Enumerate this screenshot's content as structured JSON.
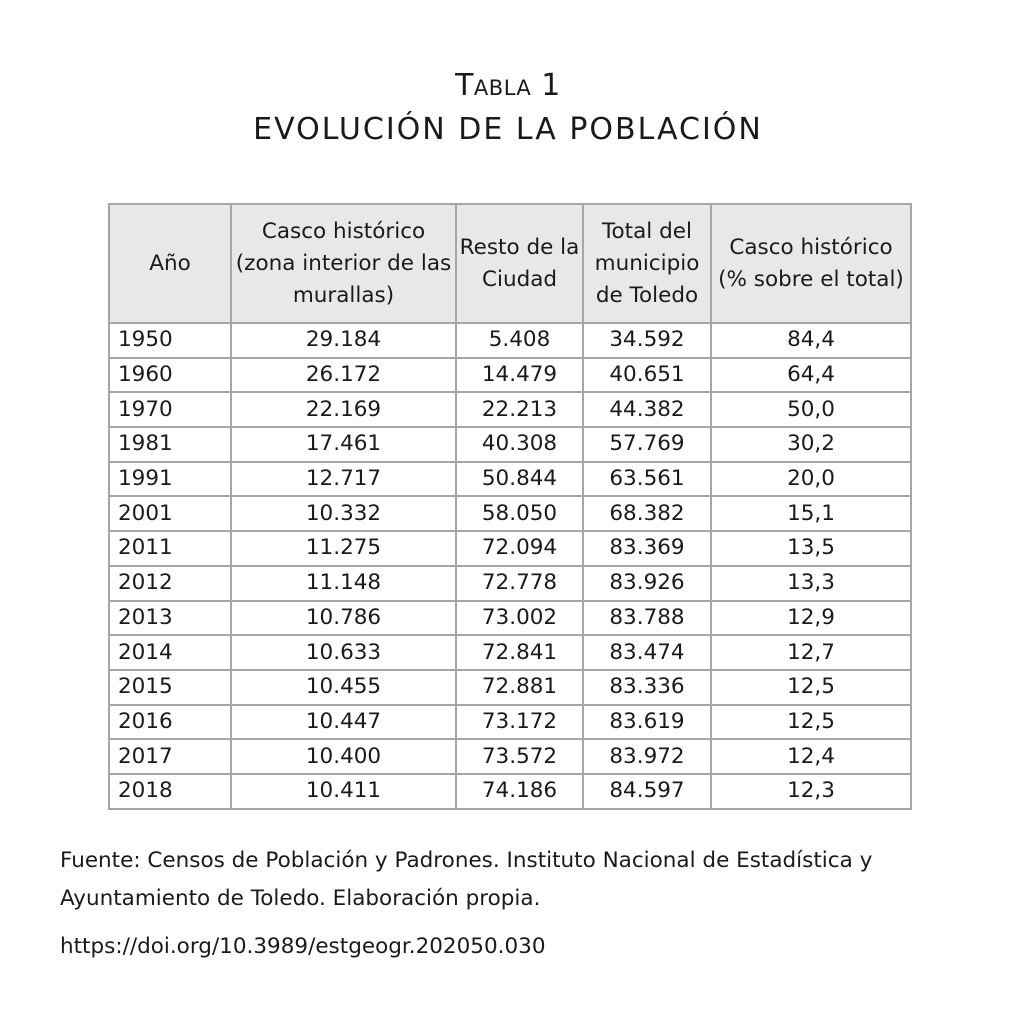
{
  "caption": {
    "number": "Tabla 1",
    "title": "EVOLUCIÓN DE LA POBLACIÓN"
  },
  "table": {
    "headers": [
      "Año",
      "Casco histórico (zona interior de las murallas)",
      "Resto de la Ciudad",
      "Total del municipio de Toledo",
      "Casco histórico (% sobre el total)"
    ],
    "rows": [
      [
        "1950",
        "29.184",
        "5.408",
        "34.592",
        "84,4"
      ],
      [
        "1960",
        "26.172",
        "14.479",
        "40.651",
        "64,4"
      ],
      [
        "1970",
        "22.169",
        "22.213",
        "44.382",
        "50,0"
      ],
      [
        "1981",
        "17.461",
        "40.308",
        "57.769",
        "30,2"
      ],
      [
        "1991",
        "12.717",
        "50.844",
        "63.561",
        "20,0"
      ],
      [
        "2001",
        "10.332",
        "58.050",
        "68.382",
        "15,1"
      ],
      [
        "2011",
        "11.275",
        "72.094",
        "83.369",
        "13,5"
      ],
      [
        "2012",
        "11.148",
        "72.778",
        "83.926",
        "13,3"
      ],
      [
        "2013",
        "10.786",
        "73.002",
        "83.788",
        "12,9"
      ],
      [
        "2014",
        "10.633",
        "72.841",
        "83.474",
        "12,7"
      ],
      [
        "2015",
        "10.455",
        "72.881",
        "83.336",
        "12,5"
      ],
      [
        "2016",
        "10.447",
        "73.172",
        "83.619",
        "12,5"
      ],
      [
        "2017",
        "10.400",
        "73.572",
        "83.972",
        "12,4"
      ],
      [
        "2018",
        "10.411",
        "74.186",
        "84.597",
        "12,3"
      ]
    ]
  },
  "source": "Fuente: Censos de Población y Padrones. Instituto Nacional de Estadística y Ayuntamiento de Toledo. Elaboración propia.",
  "doi": "https://doi.org/10.3989/estgeogr.202050.030"
}
